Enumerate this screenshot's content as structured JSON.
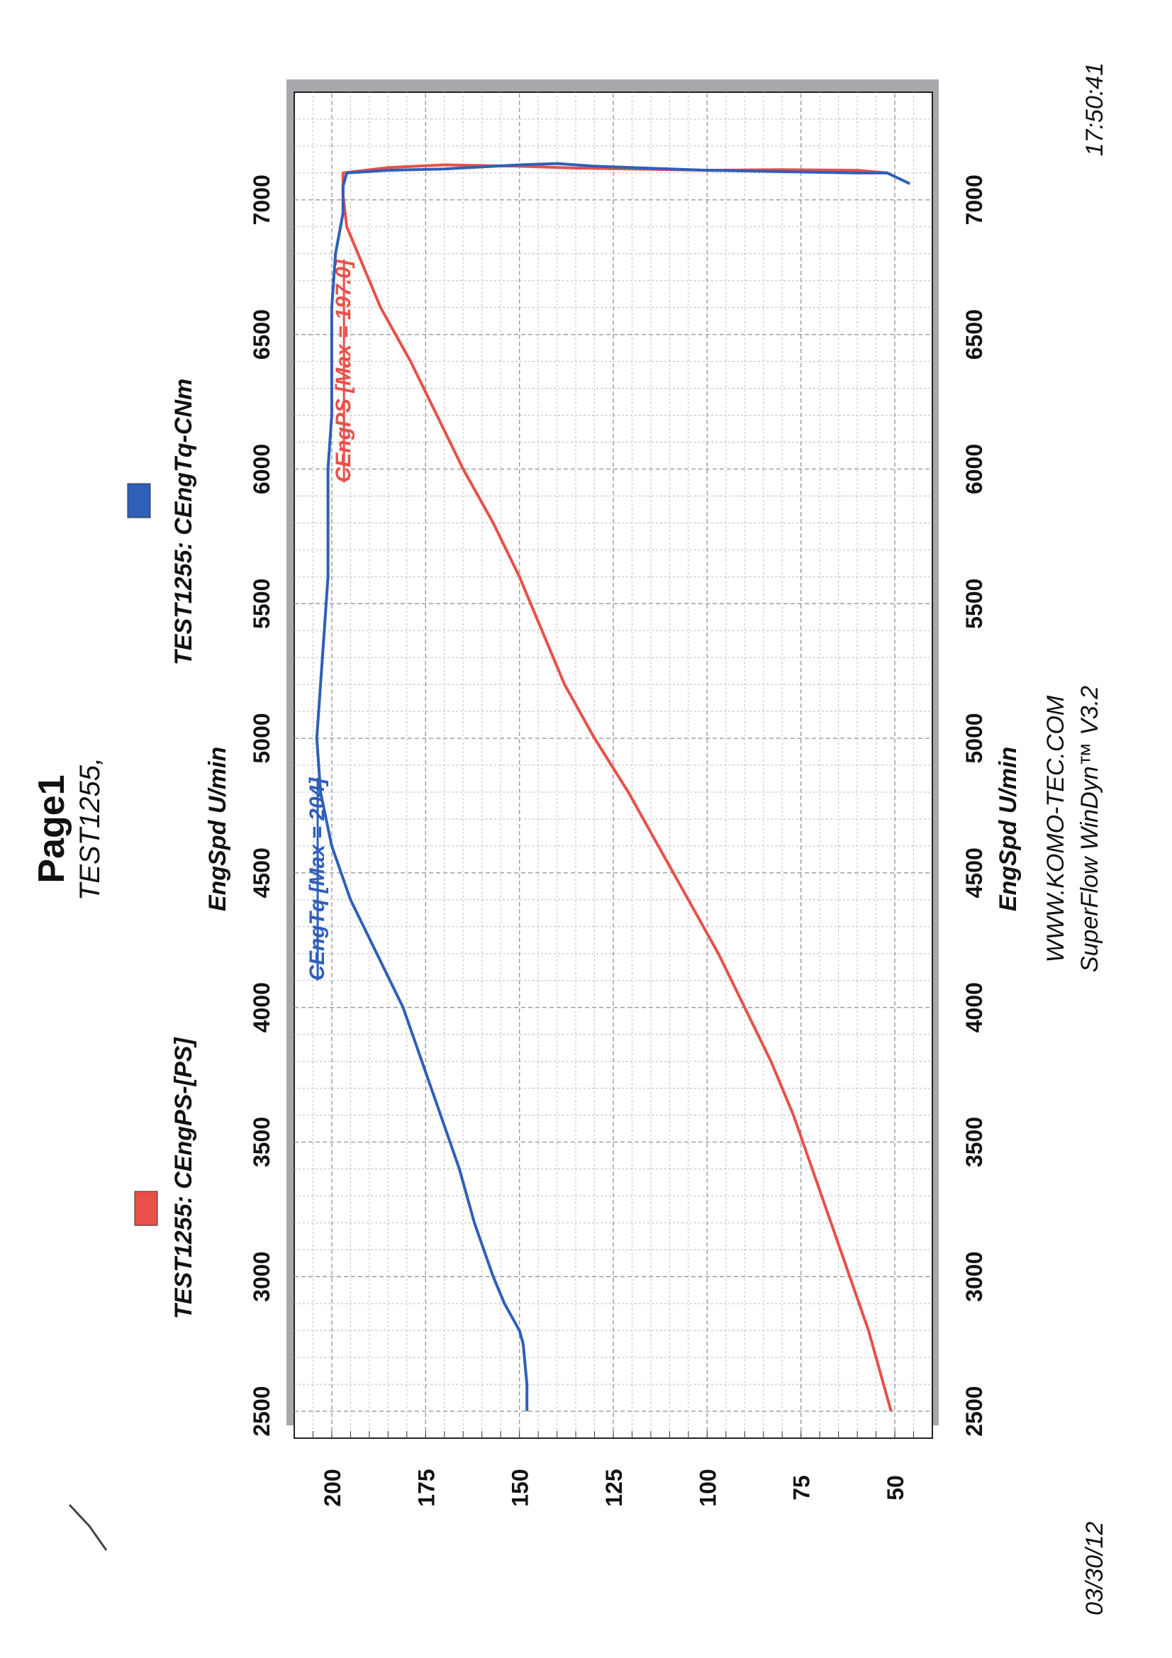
{
  "header": {
    "title": "Page1",
    "subtitle": "TEST1255,"
  },
  "legend": {
    "power": {
      "label": "TEST1255: CEngPS-[PS]",
      "color": "#e8504a"
    },
    "torque": {
      "label": "TEST1255: CEngTq-CNm",
      "color": "#2f5fb8"
    }
  },
  "footer": {
    "date": "03/30/12",
    "time": "17:50:41",
    "website": "WWW.KOMO-TEC.COM",
    "software": "SuperFlow WinDyn™ V3.2"
  },
  "chart_data": {
    "type": "line",
    "xlabel": "EngSpd U/min",
    "x_ticks": [
      "2500",
      "3000",
      "3500",
      "4000",
      "4500",
      "5000",
      "5500",
      "6000",
      "6500",
      "7000"
    ],
    "y_ticks": [
      "200",
      "175",
      "150",
      "125",
      "100",
      "75",
      "50"
    ],
    "xlim": [
      2400,
      7400
    ],
    "ylim": [
      40,
      210
    ],
    "series": [
      {
        "name": "CEngPS",
        "annotation": "CEngPS [Max = 197.0]",
        "color": "#e8504a",
        "points": [
          [
            2500,
            51
          ],
          [
            2600,
            53
          ],
          [
            2700,
            55
          ],
          [
            2800,
            57
          ],
          [
            3000,
            62
          ],
          [
            3200,
            67
          ],
          [
            3400,
            72
          ],
          [
            3600,
            77
          ],
          [
            3800,
            83
          ],
          [
            4000,
            90
          ],
          [
            4200,
            97
          ],
          [
            4400,
            105
          ],
          [
            4600,
            113
          ],
          [
            4800,
            121
          ],
          [
            5000,
            130
          ],
          [
            5200,
            138
          ],
          [
            5400,
            144
          ],
          [
            5600,
            150
          ],
          [
            5800,
            157
          ],
          [
            6000,
            165
          ],
          [
            6200,
            172
          ],
          [
            6400,
            179
          ],
          [
            6600,
            187
          ],
          [
            6800,
            193
          ],
          [
            6900,
            196
          ],
          [
            7020,
            197
          ],
          [
            7100,
            197
          ],
          [
            7120,
            185
          ],
          [
            7130,
            170
          ],
          [
            7125,
            150
          ],
          [
            7118,
            135
          ],
          [
            7110,
            100
          ],
          [
            7112,
            80
          ],
          [
            7110,
            60
          ],
          [
            7100,
            52
          ]
        ]
      },
      {
        "name": "CEngTq",
        "annotation": "CEngTq [Max = 204]",
        "color": "#2f5fb8",
        "points": [
          [
            2500,
            148
          ],
          [
            2600,
            148
          ],
          [
            2750,
            149
          ],
          [
            2800,
            150
          ],
          [
            2900,
            154
          ],
          [
            3000,
            157
          ],
          [
            3200,
            162
          ],
          [
            3400,
            166
          ],
          [
            3600,
            171
          ],
          [
            3800,
            176
          ],
          [
            4000,
            181
          ],
          [
            4200,
            188
          ],
          [
            4400,
            195
          ],
          [
            4600,
            200
          ],
          [
            4800,
            203
          ],
          [
            5000,
            204
          ],
          [
            5200,
            203
          ],
          [
            5400,
            202
          ],
          [
            5600,
            201
          ],
          [
            5800,
            201
          ],
          [
            6000,
            201
          ],
          [
            6200,
            200
          ],
          [
            6400,
            200
          ],
          [
            6600,
            200
          ],
          [
            6800,
            199
          ],
          [
            6950,
            197
          ],
          [
            7050,
            197
          ],
          [
            7100,
            196
          ],
          [
            7110,
            185
          ],
          [
            7115,
            170
          ],
          [
            7130,
            150
          ],
          [
            7135,
            140
          ],
          [
            7125,
            130
          ],
          [
            7115,
            110
          ],
          [
            7110,
            100
          ],
          [
            7105,
            80
          ],
          [
            7100,
            60
          ],
          [
            7100,
            52
          ],
          [
            7060,
            46
          ]
        ]
      }
    ]
  }
}
